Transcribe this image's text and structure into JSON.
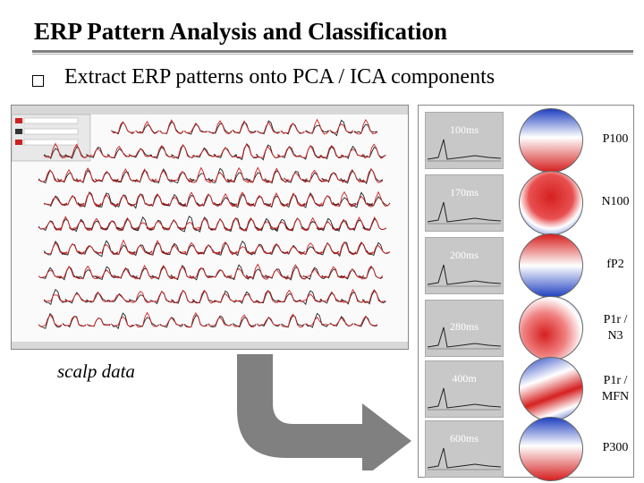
{
  "slide": {
    "title": "ERP Pattern Analysis and Classification",
    "bullet": "Extract ERP patterns onto PCA / ICA components",
    "scalp_label": "scalp data"
  },
  "components": [
    {
      "time": "100ms",
      "name": "P100",
      "topo": "top-blue-bottom-red"
    },
    {
      "time": "170ms",
      "name": "N100",
      "topo": "center-red"
    },
    {
      "time": "200ms",
      "name": "fP2",
      "topo": "top-red-bottom-blue"
    },
    {
      "time": "280ms",
      "name": "P1r /\nN3",
      "topo": "mixed-red"
    },
    {
      "time": "400m",
      "name": "P1r /\nMFN",
      "topo": "left-red-right-blue"
    },
    {
      "time": "600ms",
      "name": "P300",
      "topo": "top-blue-bottom-red"
    }
  ],
  "colors": {
    "accent_red": "#d62020",
    "accent_blue": "#2040c0",
    "rule": "#808080"
  }
}
